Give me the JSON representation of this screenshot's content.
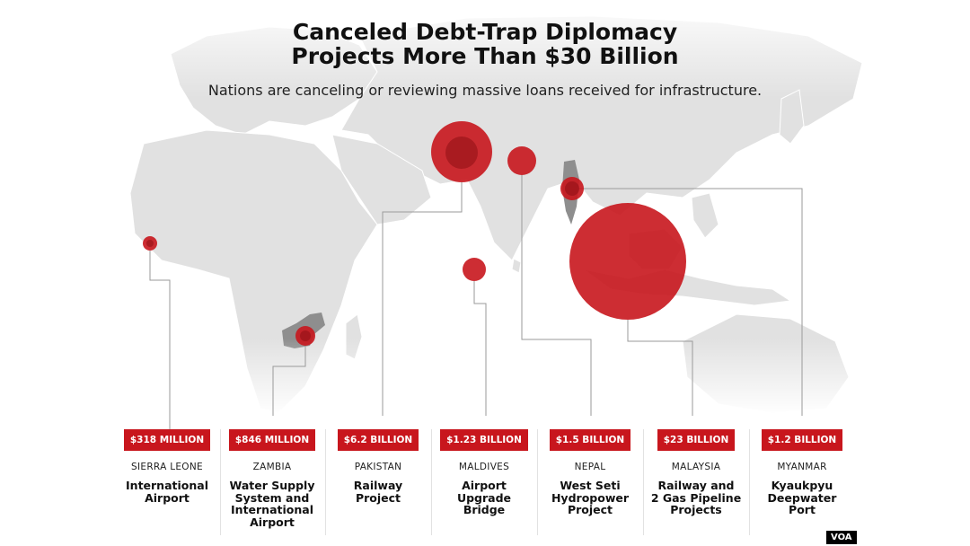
{
  "title_line1": "Canceled Debt-Trap Diplomacy",
  "title_line2": "Projects More Than $30 Billion",
  "subtitle": "Nations are canceling or reviewing massive loans received for infrastructure.",
  "projects": [
    {
      "amount": "$318 MILLION",
      "country": "SIERRA LEONE",
      "project": [
        "International",
        "Airport"
      ]
    },
    {
      "amount": "$846 MILLION",
      "country": "ZAMBIA",
      "project": [
        "Water Supply",
        "System and",
        "International",
        "Airport"
      ]
    },
    {
      "amount": "$6.2 BILLION",
      "country": "PAKISTAN",
      "project": [
        "Railway",
        "Project"
      ]
    },
    {
      "amount": "$1.23 BILLION",
      "country": "MALDIVES",
      "project": [
        "Airport",
        "Upgrade",
        "Bridge"
      ]
    },
    {
      "amount": "$1.5 BILLION",
      "country": "NEPAL",
      "project": [
        "West Seti",
        "Hydropower",
        "Project"
      ]
    },
    {
      "amount": "$23 BILLION",
      "country": "MALAYSIA",
      "project": [
        "Railway and",
        "2 Gas Pipeline",
        "Projects"
      ]
    },
    {
      "amount": "$1.2 BILLION",
      "country": "MYANMAR",
      "project": [
        "Kyaukpyu",
        "Deepwater",
        "Port"
      ]
    }
  ],
  "credit": "VOA",
  "colors": {
    "bubble": "#c8161d",
    "bubble_dark": "#8e0f14",
    "land": "#e1e1e1",
    "leader": "#9a9a9a"
  }
}
